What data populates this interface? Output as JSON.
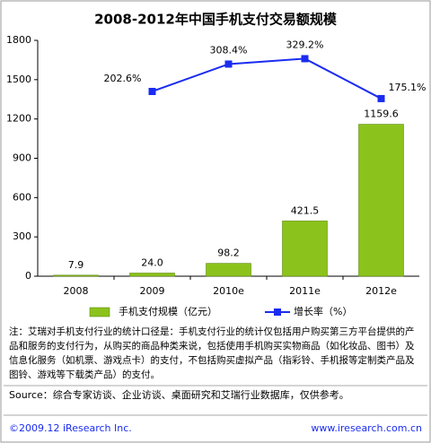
{
  "chart_data": {
    "type": "bar",
    "title": "2008-2012年中国手机支付交易额规模",
    "categories": [
      "2008",
      "2009",
      "2010e",
      "2011e",
      "2012e"
    ],
    "series": [
      {
        "name": "手机支付规模（亿元）",
        "type": "bar",
        "color": "#8cc21c",
        "values": [
          7.9,
          24.0,
          98.2,
          421.5,
          1159.6
        ],
        "value_labels": [
          "7.9",
          "24.0",
          "98.2",
          "421.5",
          "1159.6"
        ]
      },
      {
        "name": "增长率（%）",
        "type": "line",
        "axis": "y2",
        "color": "#1a2cf0",
        "values": [
          null,
          202.6,
          308.4,
          329.2,
          175.1
        ],
        "value_labels": [
          null,
          "202.6%",
          "308.4%",
          "329.2%",
          "175.1%"
        ]
      }
    ],
    "ylim": [
      0,
      1800
    ],
    "yticks": [
      0,
      300,
      600,
      900,
      1200,
      1500,
      1800
    ],
    "y2lim": [
      -511,
      400
    ],
    "note": "注：艾瑞对手机支付行业的统计口径是：手机支付行业的统计仅包括用户购买第三方平台提供的产品和服务的支付行为，从购买的商品种类来说，包括使用手机购买实物商品（如化妆品、图书）及信息化服务（如机票、游戏点卡）的支付，不包括购买虚拟产品（指彩铃、手机报等定制类产品及图铃、游戏等下载类产品）的支付。",
    "source": "Source：综合专家访谈、企业访谈、桌面研究和艾瑞行业数据库，仅供参考。",
    "copyright": "©2009.12 iResearch Inc.",
    "website": "www.iresearch.com.cn"
  }
}
